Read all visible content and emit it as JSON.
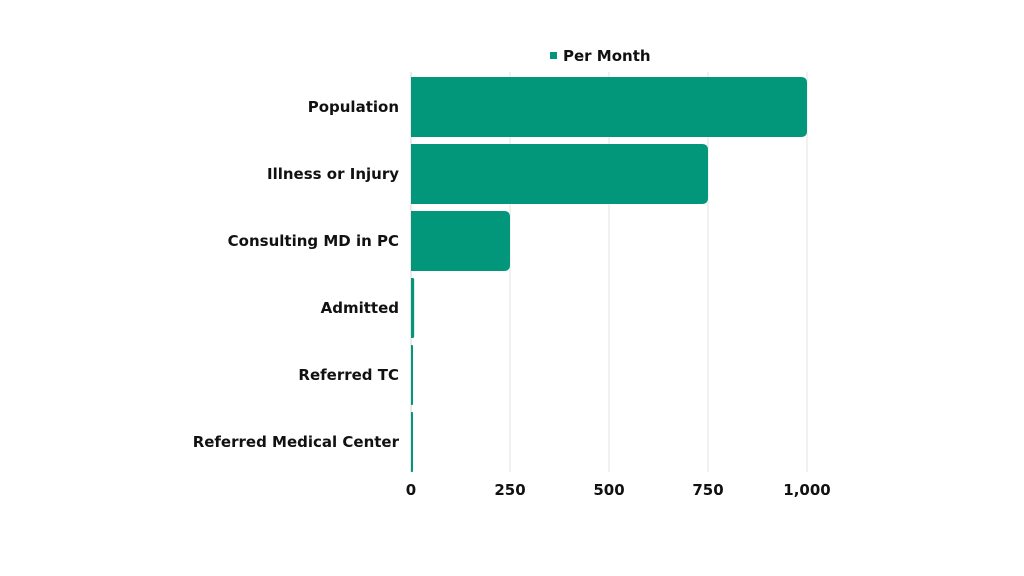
{
  "chart_data": {
    "type": "bar",
    "orientation": "horizontal",
    "categories": [
      "Population",
      "Illness or Injury",
      "Consulting MD in PC",
      "Admitted",
      "Referred TC",
      "Referred Medical Center"
    ],
    "series": [
      {
        "name": "Per Month",
        "values": [
          1000,
          750,
          250,
          8,
          5,
          1
        ],
        "color": "#02967a"
      }
    ],
    "xlim": [
      0,
      1000
    ],
    "xticks": [
      0,
      250,
      500,
      750,
      1000
    ],
    "xtick_labels": [
      "0",
      "250",
      "500",
      "750",
      "1,000"
    ],
    "grid": true,
    "legend_position": "top-center"
  }
}
